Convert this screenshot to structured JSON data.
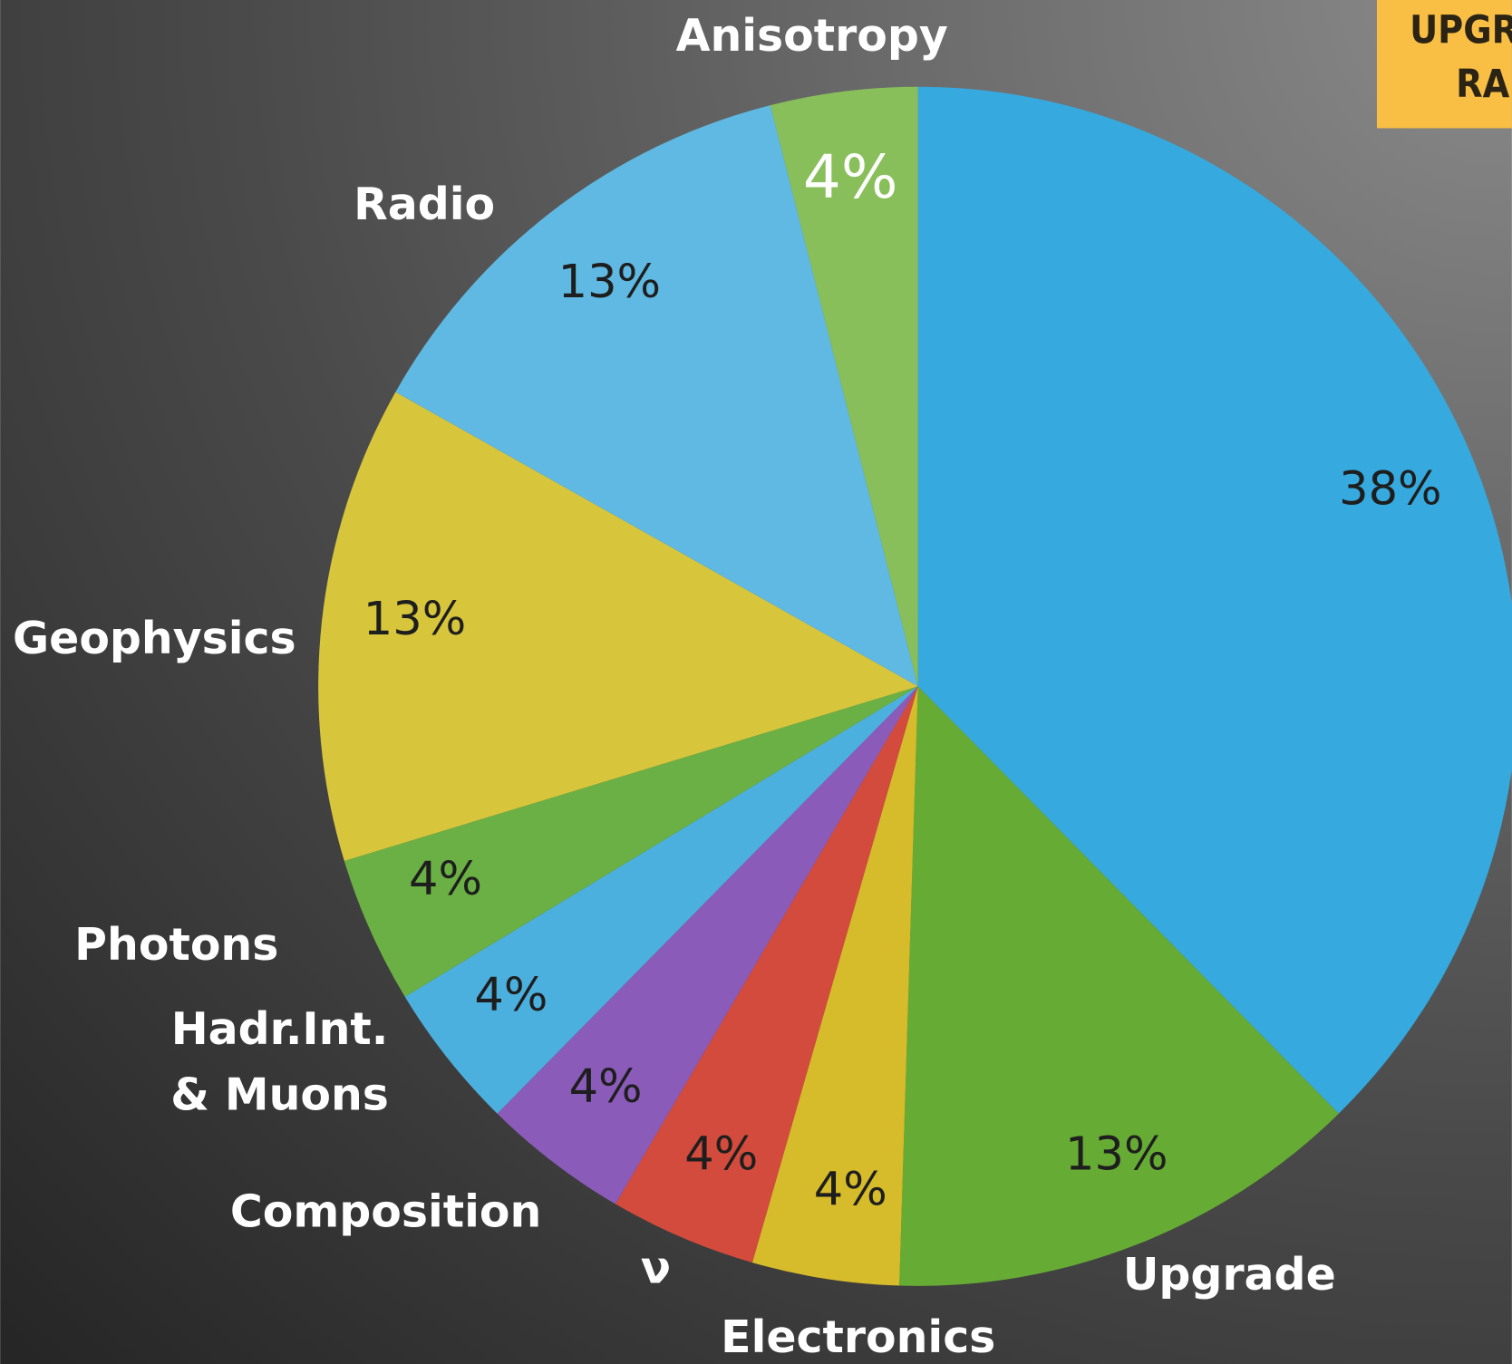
{
  "chart_data": {
    "type": "pie",
    "categories": [
      null,
      "Upgrade",
      "Electronics",
      "ν",
      "Composition",
      "Hadr.Int.\n& Muons",
      "Photons",
      "Geophysics",
      "Radio",
      "Anisotropy"
    ],
    "values": [
      38,
      13,
      4,
      4,
      4,
      4,
      4,
      13,
      13,
      4
    ],
    "value_labels": [
      "38%",
      "13%",
      "4%",
      "4%",
      "4%",
      "4%",
      "4%",
      "13%",
      "13%",
      "4%"
    ],
    "colors": [
      "#36a9de",
      "#66ac34",
      "#d6bb2a",
      "#d24b3d",
      "#8a5bb8",
      "#4cb0de",
      "#6bb044",
      "#d7c53c",
      "#5fb9e2",
      "#88bf5a"
    ],
    "annotations": [
      "UPGRA",
      "RAD"
    ]
  }
}
